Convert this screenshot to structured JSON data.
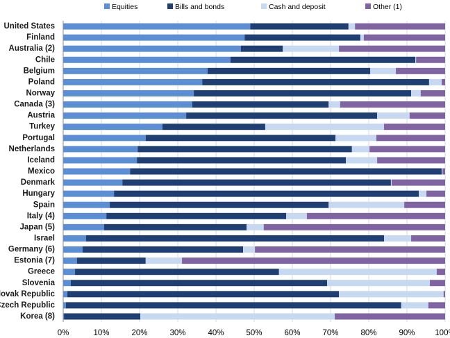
{
  "chart_data": {
    "type": "stacked-barh",
    "categories": [
      "United States",
      "Finland",
      "Australia (2)",
      "Chile",
      "Belgium",
      "Poland",
      "Norway",
      "Canada (3)",
      "Austria",
      "Turkey",
      "Portugal",
      "Netherlands",
      "Iceland",
      "Mexico",
      "Denmark",
      "Hungary",
      "Spain",
      "Italy (4)",
      "Japan (5)",
      "Israel",
      "Germany (6)",
      "Estonia (7)",
      "Greece",
      "Slovenia",
      "Slovak Republic",
      "Czech Republic",
      "Korea (8)"
    ],
    "series": [
      {
        "name": "Equities",
        "color": "#5b8ed5",
        "values": [
          49,
          47.5,
          46.5,
          43.8,
          37.8,
          36.4,
          34.2,
          33.8,
          32.2,
          26,
          21.6,
          19.5,
          19.3,
          17.5,
          15.5,
          13.3,
          12.2,
          11.3,
          10.7,
          6,
          5.1,
          3.6,
          3.1,
          2,
          1.1,
          0.7,
          0.2
        ]
      },
      {
        "name": "Bills and bonds",
        "color": "#1f3e72",
        "values": [
          25.7,
          30.3,
          11,
          48.4,
          42.6,
          59.4,
          56.9,
          35.7,
          50,
          26.9,
          49.7,
          56.1,
          54.7,
          81.6,
          70.3,
          79.8,
          57.3,
          47.1,
          37.3,
          78,
          42,
          18,
          53.4,
          67.1,
          71.1,
          87.8,
          20
        ]
      },
      {
        "name": "Cash and deposit",
        "color": "#c6d9f1",
        "values": [
          1.7,
          0.9,
          14.7,
          0.2,
          6.7,
          3.3,
          2.5,
          3,
          8.5,
          31.1,
          10.7,
          4.6,
          8.2,
          0.2,
          0.2,
          2,
          19.8,
          5.4,
          4.5,
          7.1,
          3.1,
          9.5,
          41.3,
          26.9,
          27.4,
          7.1,
          50.9
        ]
      },
      {
        "name": "Other (1)",
        "color": "#8064a2",
        "values": [
          23.6,
          21.3,
          27.8,
          7.6,
          12.9,
          0.9,
          6.4,
          27.5,
          9.3,
          16,
          18,
          19.8,
          17.8,
          0.7,
          14,
          4.9,
          10.7,
          36.2,
          47.5,
          8.9,
          49.8,
          68.9,
          2.2,
          4,
          0.4,
          4.4,
          28.9
        ]
      }
    ],
    "xlim": [
      0,
      100
    ],
    "xticks": [
      {
        "value": 0,
        "label": "0%"
      },
      {
        "value": 10,
        "label": "10%"
      },
      {
        "value": 20,
        "label": "20%"
      },
      {
        "value": 30,
        "label": "30%"
      },
      {
        "value": 40,
        "label": "40%"
      },
      {
        "value": 50,
        "label": "50%"
      },
      {
        "value": 60,
        "label": "60%"
      },
      {
        "value": 70,
        "label": "70%"
      },
      {
        "value": 80,
        "label": "80%"
      },
      {
        "value": 90,
        "label": "90%"
      },
      {
        "value": 100,
        "label": "100%"
      }
    ],
    "grid": true
  }
}
